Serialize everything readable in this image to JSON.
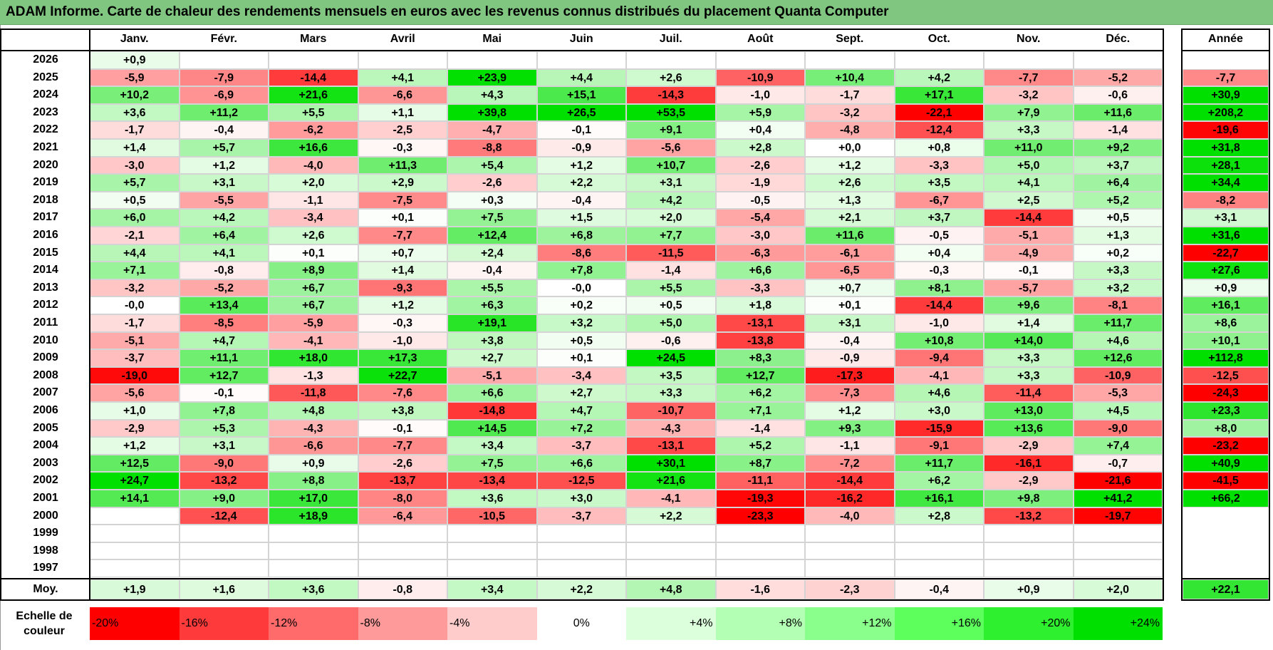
{
  "title": "ADAM Informe. Carte de chaleur des rendements mensuels en euros avec les revenus connus distribués du placement Quanta Computer",
  "chart_data": {
    "type": "heatmap",
    "columns": [
      "Janv.",
      "Févr.",
      "Mars",
      "Avril",
      "Mai",
      "Juin",
      "Juil.",
      "Août",
      "Sept.",
      "Oct.",
      "Nov.",
      "Déc."
    ],
    "annual_header": "Année",
    "average_label": "Moy.",
    "rows": [
      {
        "year": "2026",
        "months": [
          "+0,9",
          "",
          "",
          "",
          "",
          "",
          "",
          "",
          "",
          "",
          "",
          ""
        ],
        "annual": ""
      },
      {
        "year": "2025",
        "months": [
          "-5,9",
          "-7,9",
          "-14,4",
          "+4,1",
          "+23,9",
          "+4,4",
          "+2,6",
          "-10,9",
          "+10,4",
          "+4,2",
          "-7,7",
          "-5,2"
        ],
        "annual": "-7,7"
      },
      {
        "year": "2024",
        "months": [
          "+10,2",
          "-6,9",
          "+21,6",
          "-6,6",
          "+4,3",
          "+15,1",
          "-14,3",
          "-1,0",
          "-1,7",
          "+17,1",
          "-3,2",
          "-0,6"
        ],
        "annual": "+30,9"
      },
      {
        "year": "2023",
        "months": [
          "+3,6",
          "+11,2",
          "+5,5",
          "+1,1",
          "+39,8",
          "+26,5",
          "+53,5",
          "+5,9",
          "-3,2",
          "-22,1",
          "+7,9",
          "+11,6"
        ],
        "annual": "+208,2"
      },
      {
        "year": "2022",
        "months": [
          "-1,7",
          "-0,4",
          "-6,2",
          "-2,5",
          "-4,7",
          "-0,1",
          "+9,1",
          "+0,4",
          "-4,8",
          "-12,4",
          "+3,3",
          "-1,4"
        ],
        "annual": "-19,6"
      },
      {
        "year": "2021",
        "months": [
          "+1,4",
          "+5,7",
          "+16,6",
          "-0,3",
          "-8,8",
          "-0,9",
          "-5,6",
          "+2,8",
          "+0,0",
          "+0,8",
          "+11,0",
          "+9,2"
        ],
        "annual": "+31,8"
      },
      {
        "year": "2020",
        "months": [
          "-3,0",
          "+1,2",
          "-4,0",
          "+11,3",
          "+5,4",
          "+1,2",
          "+10,7",
          "-2,6",
          "+1,2",
          "-3,3",
          "+5,0",
          "+3,7"
        ],
        "annual": "+28,1"
      },
      {
        "year": "2019",
        "months": [
          "+5,7",
          "+3,1",
          "+2,0",
          "+2,9",
          "-2,6",
          "+2,2",
          "+3,1",
          "-1,9",
          "+2,6",
          "+3,5",
          "+4,1",
          "+6,4"
        ],
        "annual": "+34,4"
      },
      {
        "year": "2018",
        "months": [
          "+0,5",
          "-5,5",
          "-1,1",
          "-7,5",
          "+0,3",
          "-0,4",
          "+4,2",
          "-0,5",
          "+1,3",
          "-6,7",
          "+2,5",
          "+5,2"
        ],
        "annual": "-8,2"
      },
      {
        "year": "2017",
        "months": [
          "+6,0",
          "+4,2",
          "-3,4",
          "+0,1",
          "+7,5",
          "+1,5",
          "+2,0",
          "-5,4",
          "+2,1",
          "+3,7",
          "-14,4",
          "+0,5"
        ],
        "annual": "+3,1"
      },
      {
        "year": "2016",
        "months": [
          "-2,1",
          "+6,4",
          "+2,6",
          "-7,7",
          "+12,4",
          "+6,8",
          "+7,7",
          "-3,0",
          "+11,6",
          "-0,5",
          "-5,1",
          "+1,3"
        ],
        "annual": "+31,6"
      },
      {
        "year": "2015",
        "months": [
          "+4,4",
          "+4,1",
          "+0,1",
          "+0,7",
          "+2,4",
          "-8,6",
          "-11,5",
          "-6,3",
          "-6,1",
          "+0,4",
          "-4,9",
          "+0,2"
        ],
        "annual": "-22,7"
      },
      {
        "year": "2014",
        "months": [
          "+7,1",
          "-0,8",
          "+8,9",
          "+1,4",
          "-0,4",
          "+7,8",
          "-1,4",
          "+6,6",
          "-6,5",
          "-0,3",
          "-0,1",
          "+3,3"
        ],
        "annual": "+27,6"
      },
      {
        "year": "2013",
        "months": [
          "-3,2",
          "-5,2",
          "+6,7",
          "-9,3",
          "+5,5",
          "-0,0",
          "+5,5",
          "-3,3",
          "+0,7",
          "+8,1",
          "-5,7",
          "+3,2"
        ],
        "annual": "+0,9"
      },
      {
        "year": "2012",
        "months": [
          "-0,0",
          "+13,4",
          "+6,7",
          "+1,2",
          "+6,3",
          "+0,2",
          "+0,5",
          "+1,8",
          "+0,1",
          "-14,4",
          "+9,6",
          "-8,1"
        ],
        "annual": "+16,1"
      },
      {
        "year": "2011",
        "months": [
          "-1,7",
          "-8,5",
          "-5,9",
          "-0,3",
          "+19,1",
          "+3,2",
          "+5,0",
          "-13,1",
          "+3,1",
          "-1,0",
          "+1,4",
          "+11,7"
        ],
        "annual": "+8,6"
      },
      {
        "year": "2010",
        "months": [
          "-5,1",
          "+4,7",
          "-4,1",
          "-1,0",
          "+3,8",
          "+0,5",
          "-0,6",
          "-13,8",
          "-0,4",
          "+10,8",
          "+14,0",
          "+4,6"
        ],
        "annual": "+10,1"
      },
      {
        "year": "2009",
        "months": [
          "-3,7",
          "+11,1",
          "+18,0",
          "+17,3",
          "+2,7",
          "+0,1",
          "+24,5",
          "+8,3",
          "-0,9",
          "-9,4",
          "+3,3",
          "+12,6"
        ],
        "annual": "+112,8"
      },
      {
        "year": "2008",
        "months": [
          "-19,0",
          "+12,7",
          "-1,3",
          "+22,7",
          "-5,1",
          "-3,4",
          "+3,5",
          "+12,7",
          "-17,3",
          "-4,1",
          "+3,3",
          "-10,9"
        ],
        "annual": "-12,5"
      },
      {
        "year": "2007",
        "months": [
          "-5,6",
          "-0,1",
          "-11,8",
          "-7,6",
          "+6,6",
          "+2,7",
          "+3,3",
          "+6,2",
          "-7,3",
          "+4,6",
          "-11,4",
          "-5,3"
        ],
        "annual": "-24,3"
      },
      {
        "year": "2006",
        "months": [
          "+1,0",
          "+7,8",
          "+4,8",
          "+3,8",
          "-14,8",
          "+4,7",
          "-10,7",
          "+7,1",
          "+1,2",
          "+3,0",
          "+13,0",
          "+4,5"
        ],
        "annual": "+23,3"
      },
      {
        "year": "2005",
        "months": [
          "-2,9",
          "+5,3",
          "-4,3",
          "-0,1",
          "+14,5",
          "+7,2",
          "-4,3",
          "-1,4",
          "+9,3",
          "-15,9",
          "+13,6",
          "-9,0"
        ],
        "annual": "+8,0"
      },
      {
        "year": "2004",
        "months": [
          "+1,2",
          "+3,1",
          "-6,6",
          "-7,7",
          "+3,4",
          "-3,7",
          "-13,1",
          "+5,2",
          "-1,1",
          "-9,1",
          "-2,9",
          "+7,4"
        ],
        "annual": "-23,2"
      },
      {
        "year": "2003",
        "months": [
          "+12,5",
          "-9,0",
          "+0,9",
          "-2,6",
          "+7,5",
          "+6,6",
          "+30,1",
          "+8,7",
          "-7,2",
          "+11,7",
          "-16,1",
          "-0,7"
        ],
        "annual": "+40,9"
      },
      {
        "year": "2002",
        "months": [
          "+24,7",
          "-13,2",
          "+8,8",
          "-13,7",
          "-13,4",
          "-12,5",
          "+21,6",
          "-11,1",
          "-14,4",
          "+6,2",
          "-2,9",
          "-21,6"
        ],
        "annual": "-41,5"
      },
      {
        "year": "2001",
        "months": [
          "+14,1",
          "+9,0",
          "+17,0",
          "-8,0",
          "+3,6",
          "+3,0",
          "-4,1",
          "-19,3",
          "-16,2",
          "+16,1",
          "+9,8",
          "+41,2"
        ],
        "annual": "+66,2"
      },
      {
        "year": "2000",
        "months": [
          "",
          "-12,4",
          "+18,9",
          "-6,4",
          "-10,5",
          "-3,7",
          "+2,2",
          "-23,3",
          "-4,0",
          "+2,8",
          "-13,2",
          "-19,7"
        ],
        "annual": ""
      },
      {
        "year": "1999",
        "months": [
          "",
          "",
          "",
          "",
          "",
          "",
          "",
          "",
          "",
          "",
          "",
          ""
        ],
        "annual": ""
      },
      {
        "year": "1998",
        "months": [
          "",
          "",
          "",
          "",
          "",
          "",
          "",
          "",
          "",
          "",
          "",
          ""
        ],
        "annual": ""
      },
      {
        "year": "1997",
        "months": [
          "",
          "",
          "",
          "",
          "",
          "",
          "",
          "",
          "",
          "",
          "",
          ""
        ],
        "annual": ""
      }
    ],
    "averages": [
      "+1,9",
      "+1,6",
      "+3,6",
      "-0,8",
      "+3,4",
      "+2,2",
      "+4,8",
      "-1,6",
      "-2,3",
      "-0,4",
      "+0,9",
      "+2,0"
    ],
    "average_annual": "+22,1",
    "color_scale": {
      "label_line1": "Echelle de",
      "label_line2": "couleur",
      "stops": [
        "-20%",
        "-16%",
        "-12%",
        "-8%",
        "-4%",
        "0%",
        "+4%",
        "+8%",
        "+12%",
        "+16%",
        "+20%",
        "+24%"
      ],
      "colors": [
        "#ff0000",
        "#ff3a3a",
        "#ff6b6b",
        "#ff9a9a",
        "#ffcccc",
        "#ffffff",
        "#dcffdc",
        "#b3ffb3",
        "#8bff8b",
        "#5cff5c",
        "#2ef02e",
        "#00e000"
      ]
    },
    "colors": {
      "negative_max": "#ff0000",
      "neutral": "#ffffff",
      "positive_max": "#00e000",
      "title_bar": "#80c680"
    }
  }
}
